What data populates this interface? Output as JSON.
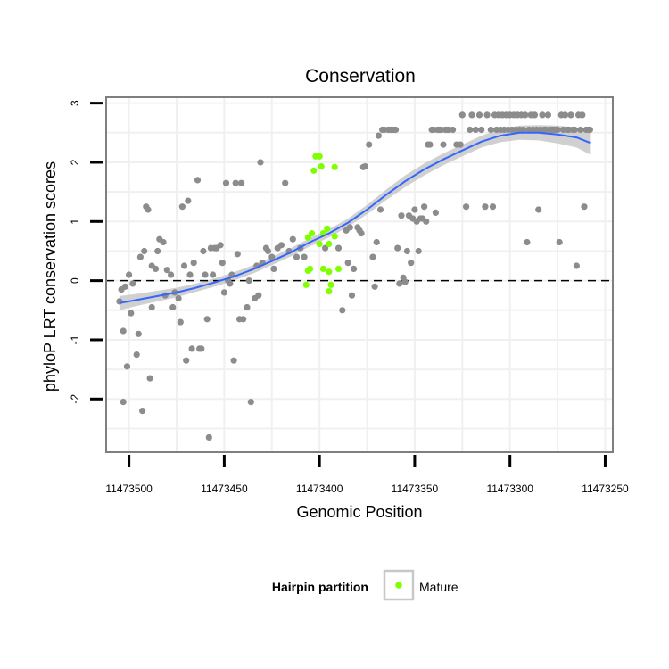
{
  "chart_data": {
    "type": "scatter",
    "title": "Conservation",
    "xlabel": "Genomic Position",
    "ylabel": "phyloP LRT conservation scores",
    "xlim": [
      11473512,
      11473246
    ],
    "x_reversed": true,
    "ylim": [
      -2.9,
      3.1
    ],
    "x_ticks": [
      11473500,
      11473450,
      11473400,
      11473350,
      11473300,
      11473250
    ],
    "y_ticks": [
      -2,
      -1,
      0,
      1,
      2,
      3
    ],
    "grid": true,
    "reference_line": {
      "y": 0,
      "style": "dashed",
      "color": "#000000"
    },
    "colors": {
      "other": "#8c8c8c",
      "mature": "#7fff00",
      "smooth": "#3366ff",
      "band": "#c8c8c8",
      "panel_border": "#7f7f7f",
      "grid": "#f0f0f0"
    },
    "legend": {
      "title": "Hairpin partition",
      "position": "bottom",
      "entries": [
        {
          "label": "Mature",
          "color": "#7fff00"
        }
      ]
    },
    "series": [
      {
        "name": "Mature",
        "color": "#7fff00",
        "points": [
          [
            11473402,
            2.1
          ],
          [
            11473400,
            2.1
          ],
          [
            11473403,
            1.86
          ],
          [
            11473399,
            1.93
          ],
          [
            11473392,
            1.92
          ],
          [
            11473404,
            0.8
          ],
          [
            11473406,
            0.73
          ],
          [
            11473400,
            0.62
          ],
          [
            11473395,
            0.62
          ],
          [
            11473398,
            0.8
          ],
          [
            11473396,
            0.88
          ],
          [
            11473392,
            0.75
          ],
          [
            11473405,
            0.2
          ],
          [
            11473406,
            0.17
          ],
          [
            11473398,
            0.2
          ],
          [
            11473395,
            0.15
          ],
          [
            11473390,
            0.2
          ],
          [
            11473407,
            -0.07
          ],
          [
            11473394,
            -0.07
          ],
          [
            11473395,
            -0.18
          ]
        ]
      },
      {
        "name": "Other",
        "color": "#8c8c8c",
        "points": [
          [
            11473505,
            -0.35
          ],
          [
            11473504,
            -0.15
          ],
          [
            11473502,
            -0.1
          ],
          [
            11473503,
            -0.85
          ],
          [
            11473501,
            -1.45
          ],
          [
            11473503,
            -2.05
          ],
          [
            11473500,
            0.1
          ],
          [
            11473498,
            -0.05
          ],
          [
            11473499,
            -0.55
          ],
          [
            11473496,
            -1.25
          ],
          [
            11473495,
            -0.9
          ],
          [
            11473493,
            -2.2
          ],
          [
            11473494,
            0.4
          ],
          [
            11473492,
            0.5
          ],
          [
            11473491,
            1.25
          ],
          [
            11473490,
            1.2
          ],
          [
            11473489,
            -1.65
          ],
          [
            11473488,
            -0.45
          ],
          [
            11473488,
            0.25
          ],
          [
            11473486,
            0.2
          ],
          [
            11473485,
            0.5
          ],
          [
            11473484,
            0.7
          ],
          [
            11473482,
            0.65
          ],
          [
            11473481,
            -0.25
          ],
          [
            11473480,
            0.18
          ],
          [
            11473478,
            0.1
          ],
          [
            11473477,
            -0.45
          ],
          [
            11473476,
            -0.2
          ],
          [
            11473474,
            -0.3
          ],
          [
            11473473,
            -0.7
          ],
          [
            11473472,
            1.25
          ],
          [
            11473471,
            0.25
          ],
          [
            11473470,
            -1.35
          ],
          [
            11473469,
            1.35
          ],
          [
            11473468,
            0.1
          ],
          [
            11473467,
            -1.15
          ],
          [
            11473466,
            0.3
          ],
          [
            11473464,
            1.7
          ],
          [
            11473463,
            -1.15
          ],
          [
            11473462,
            -1.15
          ],
          [
            11473461,
            0.5
          ],
          [
            11473460,
            0.1
          ],
          [
            11473459,
            -0.65
          ],
          [
            11473458,
            -2.65
          ],
          [
            11473457,
            0.55
          ],
          [
            11473456,
            0.1
          ],
          [
            11473455,
            0.55
          ],
          [
            11473454,
            0.55
          ],
          [
            11473452,
            0.6
          ],
          [
            11473451,
            0.3
          ],
          [
            11473450,
            -0.2
          ],
          [
            11473449,
            1.65
          ],
          [
            11473448,
            0.0
          ],
          [
            11473447,
            -0.05
          ],
          [
            11473446,
            0.1
          ],
          [
            11473445,
            -1.35
          ],
          [
            11473444,
            1.65
          ],
          [
            11473443,
            0.45
          ],
          [
            11473442,
            -0.65
          ],
          [
            11473441,
            1.65
          ],
          [
            11473440,
            -0.65
          ],
          [
            11473438,
            -0.45
          ],
          [
            11473437,
            0.0
          ],
          [
            11473436,
            -2.05
          ],
          [
            11473434,
            -0.3
          ],
          [
            11473433,
            0.25
          ],
          [
            11473432,
            -0.25
          ],
          [
            11473431,
            2.0
          ],
          [
            11473430,
            0.3
          ],
          [
            11473428,
            0.55
          ],
          [
            11473427,
            0.5
          ],
          [
            11473425,
            0.4
          ],
          [
            11473424,
            0.2
          ],
          [
            11473422,
            0.55
          ],
          [
            11473420,
            0.6
          ],
          [
            11473418,
            1.65
          ],
          [
            11473416,
            0.5
          ],
          [
            11473414,
            0.7
          ],
          [
            11473412,
            0.4
          ],
          [
            11473410,
            0.55
          ],
          [
            11473408,
            0.4
          ],
          [
            11473397,
            0.55
          ],
          [
            11473390,
            0.55
          ],
          [
            11473388,
            -0.5
          ],
          [
            11473386,
            0.85
          ],
          [
            11473385,
            0.3
          ],
          [
            11473384,
            0.9
          ],
          [
            11473383,
            -0.25
          ],
          [
            11473382,
            0.2
          ],
          [
            11473380,
            0.9
          ],
          [
            11473379,
            0.85
          ],
          [
            11473378,
            0.8
          ],
          [
            11473377,
            1.92
          ],
          [
            11473376,
            1.93
          ],
          [
            11473374,
            2.3
          ],
          [
            11473372,
            0.4
          ],
          [
            11473371,
            -0.1
          ],
          [
            11473370,
            0.65
          ],
          [
            11473369,
            2.45
          ],
          [
            11473368,
            1.2
          ],
          [
            11473367,
            2.55
          ],
          [
            11473366,
            2.55
          ],
          [
            11473364,
            2.55
          ],
          [
            11473363,
            2.55
          ],
          [
            11473362,
            2.55
          ],
          [
            11473361,
            2.55
          ],
          [
            11473360,
            2.55
          ],
          [
            11473359,
            0.55
          ],
          [
            11473358,
            -0.05
          ],
          [
            11473357,
            1.1
          ],
          [
            11473356,
            0.05
          ],
          [
            11473355,
            -0.02
          ],
          [
            11473354,
            0.5
          ],
          [
            11473353,
            1.1
          ],
          [
            11473352,
            0.3
          ],
          [
            11473351,
            1.05
          ],
          [
            11473350,
            1.2
          ],
          [
            11473349,
            1.0
          ],
          [
            11473348,
            0.5
          ],
          [
            11473347,
            1.05
          ],
          [
            11473346,
            1.05
          ],
          [
            11473345,
            1.25
          ],
          [
            11473344,
            1.0
          ],
          [
            11473343,
            2.3
          ],
          [
            11473342,
            2.3
          ],
          [
            11473341,
            2.55
          ],
          [
            11473340,
            2.55
          ],
          [
            11473339,
            1.15
          ],
          [
            11473338,
            2.55
          ],
          [
            11473337,
            2.55
          ],
          [
            11473336,
            2.55
          ],
          [
            11473335,
            2.3
          ],
          [
            11473334,
            2.55
          ],
          [
            11473333,
            2.55
          ],
          [
            11473332,
            2.55
          ],
          [
            11473330,
            2.55
          ],
          [
            11473328,
            2.3
          ],
          [
            11473326,
            2.3
          ],
          [
            11473325,
            2.8
          ],
          [
            11473323,
            1.25
          ],
          [
            11473321,
            2.55
          ],
          [
            11473320,
            2.8
          ],
          [
            11473318,
            2.55
          ],
          [
            11473316,
            2.8
          ],
          [
            11473315,
            2.55
          ],
          [
            11473313,
            1.25
          ],
          [
            11473312,
            2.8
          ],
          [
            11473310,
            2.55
          ],
          [
            11473309,
            1.25
          ],
          [
            11473308,
            2.8
          ],
          [
            11473307,
            2.55
          ],
          [
            11473306,
            2.8
          ],
          [
            11473305,
            2.55
          ],
          [
            11473304,
            2.8
          ],
          [
            11473303,
            2.55
          ],
          [
            11473302,
            2.8
          ],
          [
            11473301,
            2.55
          ],
          [
            11473300,
            2.8
          ],
          [
            11473299,
            2.55
          ],
          [
            11473298,
            2.8
          ],
          [
            11473297,
            2.55
          ],
          [
            11473296,
            2.8
          ],
          [
            11473295,
            2.55
          ],
          [
            11473294,
            2.8
          ],
          [
            11473293,
            2.55
          ],
          [
            11473292,
            2.8
          ],
          [
            11473291,
            0.65
          ],
          [
            11473290,
            2.55
          ],
          [
            11473289,
            2.8
          ],
          [
            11473288,
            2.55
          ],
          [
            11473287,
            2.8
          ],
          [
            11473286,
            2.55
          ],
          [
            11473285,
            1.2
          ],
          [
            11473284,
            2.55
          ],
          [
            11473283,
            2.8
          ],
          [
            11473282,
            2.55
          ],
          [
            11473281,
            2.55
          ],
          [
            11473280,
            2.8
          ],
          [
            11473279,
            2.55
          ],
          [
            11473278,
            2.55
          ],
          [
            11473277,
            2.55
          ],
          [
            11473276,
            2.55
          ],
          [
            11473275,
            2.55
          ],
          [
            11473274,
            0.65
          ],
          [
            11473273,
            2.8
          ],
          [
            11473272,
            2.55
          ],
          [
            11473271,
            2.8
          ],
          [
            11473270,
            2.55
          ],
          [
            11473269,
            2.55
          ],
          [
            11473268,
            2.8
          ],
          [
            11473267,
            2.55
          ],
          [
            11473266,
            2.55
          ],
          [
            11473265,
            0.25
          ],
          [
            11473264,
            2.8
          ],
          [
            11473263,
            2.55
          ],
          [
            11473262,
            2.8
          ],
          [
            11473261,
            1.25
          ],
          [
            11473260,
            2.55
          ],
          [
            11473259,
            2.55
          ],
          [
            11473258,
            2.55
          ]
        ]
      }
    ],
    "smooth": {
      "method": "loess",
      "points": [
        [
          11473505,
          -0.38
        ],
        [
          11473495,
          -0.32
        ],
        [
          11473485,
          -0.26
        ],
        [
          11473475,
          -0.2
        ],
        [
          11473465,
          -0.12
        ],
        [
          11473455,
          -0.03
        ],
        [
          11473445,
          0.07
        ],
        [
          11473435,
          0.19
        ],
        [
          11473425,
          0.33
        ],
        [
          11473415,
          0.48
        ],
        [
          11473405,
          0.65
        ],
        [
          11473395,
          0.8
        ],
        [
          11473385,
          0.98
        ],
        [
          11473375,
          1.2
        ],
        [
          11473365,
          1.45
        ],
        [
          11473355,
          1.68
        ],
        [
          11473345,
          1.88
        ],
        [
          11473335,
          2.05
        ],
        [
          11473325,
          2.2
        ],
        [
          11473315,
          2.35
        ],
        [
          11473305,
          2.45
        ],
        [
          11473295,
          2.5
        ],
        [
          11473285,
          2.5
        ],
        [
          11473275,
          2.47
        ],
        [
          11473265,
          2.42
        ],
        [
          11473258,
          2.33
        ]
      ],
      "band_halfwidth": [
        0.12,
        0.1,
        0.09,
        0.08,
        0.07,
        0.07,
        0.07,
        0.07,
        0.07,
        0.07,
        0.07,
        0.07,
        0.07,
        0.08,
        0.09,
        0.1,
        0.1,
        0.1,
        0.1,
        0.1,
        0.11,
        0.12,
        0.13,
        0.15,
        0.17,
        0.2
      ]
    }
  }
}
